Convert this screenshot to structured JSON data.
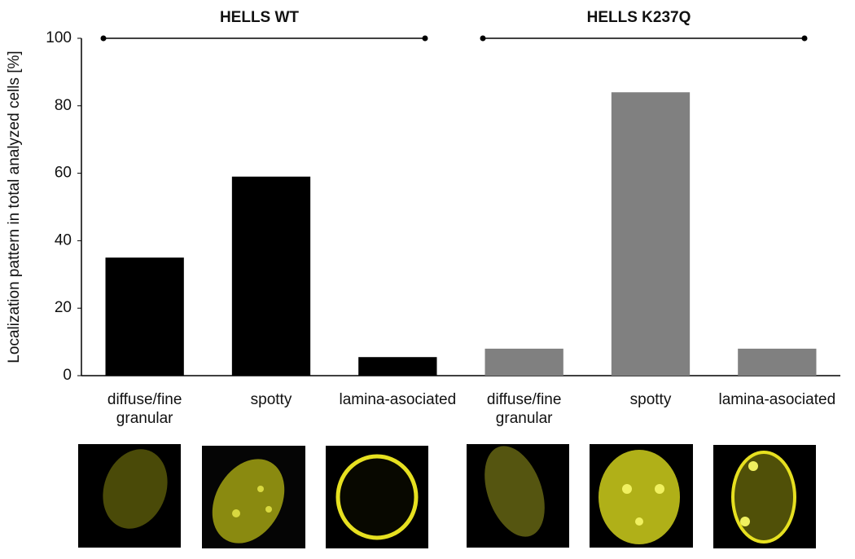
{
  "chart_data": {
    "type": "bar",
    "y_label": "Localization pattern in total analyzed cells [%]",
    "ylim": [
      0,
      100
    ],
    "yticks": [
      0,
      20,
      40,
      60,
      80,
      100
    ],
    "grid": false,
    "series": [
      {
        "name": "HELLS WT",
        "color": "#000000",
        "categories": [
          [
            "diffuse/fine",
            "granular"
          ],
          [
            "spotty"
          ],
          [
            "lamina-asociated"
          ]
        ],
        "values": [
          35,
          59,
          5.5
        ]
      },
      {
        "name": "HELLS K237Q",
        "color": "#808080",
        "categories": [
          [
            "diffuse/fine",
            "granular"
          ],
          [
            "spotty"
          ],
          [
            "lamina-asociated"
          ]
        ],
        "values": [
          8,
          84,
          8
        ]
      }
    ]
  }
}
